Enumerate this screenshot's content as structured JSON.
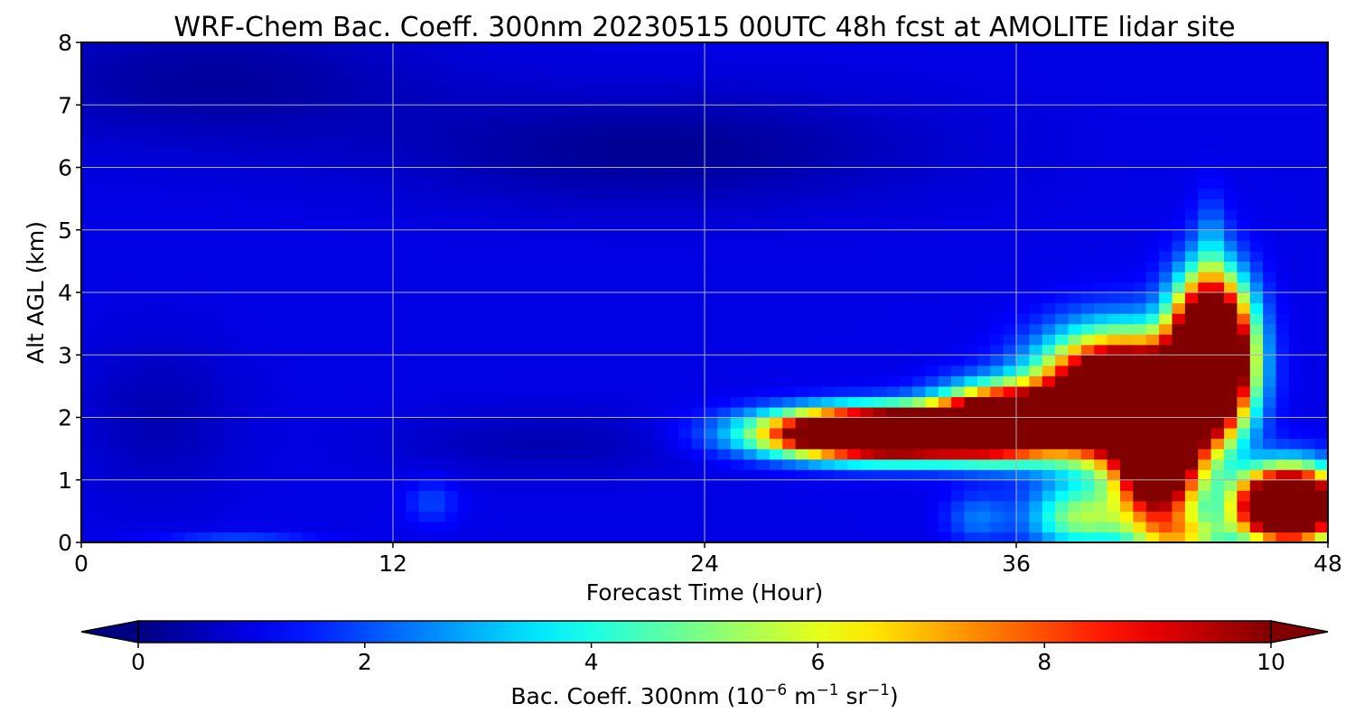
{
  "chart_data": {
    "type": "heatmap",
    "title": "WRF-Chem Bac. Coeff. 300nm  20230515 00UTC 48h fcst at AMOLITE lidar site",
    "xlabel": "Forecast Time (Hour)",
    "ylabel": "Alt AGL (km)",
    "xlim": [
      0,
      48
    ],
    "ylim": [
      0,
      8
    ],
    "x_ticks": [
      "0",
      "12",
      "24",
      "36",
      "48"
    ],
    "y_ticks": [
      "0",
      "1",
      "2",
      "3",
      "4",
      "5",
      "6",
      "7",
      "8"
    ],
    "grid": true,
    "colormap": "jet",
    "colorbar": {
      "orientation": "horizontal",
      "placement": "bottom",
      "range": [
        0,
        10
      ],
      "extend": "both",
      "ticks": [
        "0",
        "2",
        "4",
        "6",
        "8",
        "10"
      ],
      "label_main": "Bac. Coeff. 300nm  (10",
      "label_exp1": "−6",
      "label_mid": " m",
      "label_exp2": "−1",
      "label_mid2": " sr",
      "label_exp3": "−1",
      "label_end": ")"
    },
    "background_value": 1.0,
    "features": [
      {
        "name": "elevated aerosol layer",
        "x": 31.0,
        "y": 1.75,
        "sx": 4.2,
        "sy": 0.36,
        "value": 20
      },
      {
        "name": "elevated aerosol layer",
        "x": 35.5,
        "y": 1.95,
        "sx": 2.4,
        "sy": 0.5,
        "value": 14
      },
      {
        "name": "aerosol plume",
        "x": 40.0,
        "y": 2.3,
        "sx": 2.8,
        "sy": 0.9,
        "value": 18
      },
      {
        "name": "aerosol plume top",
        "x": 43.5,
        "y": 3.0,
        "sx": 1.4,
        "sy": 1.1,
        "value": 20
      },
      {
        "name": "aerosol plume core",
        "x": 41.5,
        "y": 1.2,
        "sx": 1.5,
        "sy": 0.9,
        "value": 12
      },
      {
        "name": "surface aerosol layer",
        "x": 46.5,
        "y": 0.6,
        "sx": 1.9,
        "sy": 0.55,
        "value": 18
      },
      {
        "name": "near-surface moderate",
        "x": 38.5,
        "y": 0.4,
        "sx": 2.0,
        "sy": 0.5,
        "value": 4.2
      },
      {
        "name": "near-surface moderate",
        "x": 42.5,
        "y": 0.1,
        "sx": 1.8,
        "sy": 0.35,
        "value": 4
      },
      {
        "name": "weak layer",
        "x": 34.5,
        "y": 0.4,
        "sx": 1.2,
        "sy": 0.4,
        "value": 1.4
      },
      {
        "name": "weak layer",
        "x": 13.5,
        "y": 0.65,
        "sx": 1.0,
        "sy": 0.35,
        "value": 0.9
      },
      {
        "name": "surface weak",
        "x": 6.0,
        "y": 0.05,
        "sx": 3.0,
        "sy": 0.12,
        "value": 0.9
      },
      {
        "name": "upper weak",
        "x": 43.5,
        "y": 4.8,
        "sx": 0.6,
        "sy": 0.8,
        "value": 1.2
      },
      {
        "name": "clean upper air",
        "x": 22.0,
        "y": 6.3,
        "sx": 10.0,
        "sy": 0.9,
        "value": -0.8
      },
      {
        "name": "clean upper air",
        "x": 5.0,
        "y": 7.4,
        "sx": 8.0,
        "sy": 1.0,
        "value": -0.7
      },
      {
        "name": "clean lower air",
        "x": 18.0,
        "y": 1.6,
        "sx": 6.0,
        "sy": 0.5,
        "value": -0.5
      },
      {
        "name": "clean lower air",
        "x": 3.0,
        "y": 2.0,
        "sx": 3.0,
        "sy": 1.2,
        "value": -0.5
      }
    ]
  }
}
